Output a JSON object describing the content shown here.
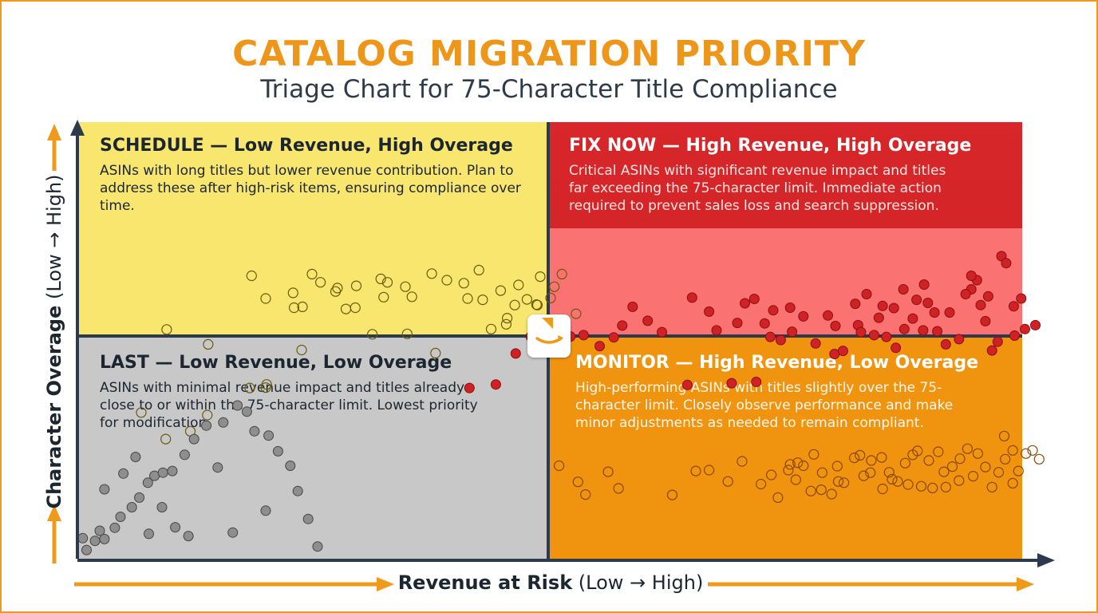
{
  "header": {
    "title": "CATALOG MIGRATION PRIORITY",
    "subtitle": "Triage Chart for 75-Character Title Compliance"
  },
  "colors": {
    "schedule": "#f8e66f",
    "fix_now": "#d42528",
    "fix_now_lower": "#fb7273",
    "last": "#c8c8c8",
    "monitor": "#f0940f",
    "axis": "#2c3a4c",
    "arrow": "#ef9a1a"
  },
  "chart_data": {
    "type": "scatter",
    "title": "CATALOG MIGRATION PRIORITY",
    "subtitle": "Triage Chart for 75-Character Title Compliance",
    "xlabel": "Revenue at Risk",
    "xlabel_range": "(Low → High)",
    "ylabel": "Character Overage",
    "ylabel_range": "(Low → High)",
    "xlim": [
      0,
      1
    ],
    "ylim": [
      0,
      1
    ],
    "grid": false,
    "quadrants": {
      "schedule": {
        "heading": "SCHEDULE — Low Revenue, High Overage",
        "description": "ASINs with long titles but lower revenue contribution. Plan to address these after high-risk items, ensuring compliance over time."
      },
      "fix_now": {
        "heading": "FIX NOW — High Revenue, High Overage",
        "description": "Critical ASINs with significant revenue impact and titles far exceeding the 75-character limit. Immediate action required to prevent sales loss and search suppression."
      },
      "last": {
        "heading": "LAST — Low Revenue, Low Overage",
        "description": "ASINs with minimal revenue impact and titles already close to or within the 75-character limit. Lowest priority for modification."
      },
      "monitor": {
        "heading": "MONITOR — High Revenue, Low Overage",
        "description": "High-performing ASINs with titles slightly over the 75-character limit. Closely observe performance and make minor adjustments as needed to remain compliant."
      }
    },
    "series": [
      {
        "quadrant": "schedule",
        "points": [
          [
            0.093,
            0.525
          ],
          [
            0.066,
            0.335
          ],
          [
            0.136,
            0.329
          ],
          [
            0.092,
            0.274
          ],
          [
            0.118,
            0.292
          ],
          [
            0.137,
            0.491
          ],
          [
            0.181,
            0.391
          ],
          [
            0.198,
            0.392
          ],
          [
            0.183,
            0.648
          ],
          [
            0.199,
            0.399
          ],
          [
            0.198,
            0.596
          ],
          [
            0.227,
            0.609
          ],
          [
            0.236,
            0.478
          ],
          [
            0.228,
            0.575
          ],
          [
            0.247,
            0.652
          ],
          [
            0.237,
            0.577
          ],
          [
            0.256,
            0.633
          ],
          [
            0.274,
            0.62
          ],
          [
            0.283,
            0.572
          ],
          [
            0.294,
            0.625
          ],
          [
            0.272,
            0.612
          ],
          [
            0.293,
            0.575
          ],
          [
            0.311,
            0.514
          ],
          [
            0.327,
            0.633
          ],
          [
            0.32,
            0.641
          ],
          [
            0.323,
            0.599
          ],
          [
            0.346,
            0.623
          ],
          [
            0.348,
            0.515
          ],
          [
            0.353,
            0.6
          ],
          [
            0.374,
            0.653
          ],
          [
            0.378,
            0.471
          ],
          [
            0.39,
            0.638
          ],
          [
            0.412,
            0.596
          ],
          [
            0.408,
            0.631
          ],
          [
            0.424,
            0.661
          ],
          [
            0.428,
            0.593
          ],
          [
            0.447,
            0.614
          ],
          [
            0.475,
            0.594
          ],
          [
            0.466,
            0.627
          ],
          [
            0.485,
            0.582
          ],
          [
            0.454,
            0.551
          ],
          [
            0.504,
            0.623
          ],
          [
            0.5,
            0.597
          ],
          [
            0.512,
            0.652
          ],
          [
            0.462,
            0.581
          ],
          [
            0.453,
            0.537
          ],
          [
            0.527,
            0.561
          ],
          [
            0.489,
            0.646
          ],
          [
            0.437,
            0.526
          ],
          [
            0.486,
            0.581
          ]
        ]
      },
      {
        "quadrant": "fix_now",
        "points": [
          [
            0.645,
            0.398
          ],
          [
            0.692,
            0.402
          ],
          [
            0.718,
            0.405
          ],
          [
            0.733,
            0.508
          ],
          [
            0.744,
            0.501
          ],
          [
            0.756,
            0.52
          ],
          [
            0.781,
            0.493
          ],
          [
            0.801,
            0.469
          ],
          [
            0.81,
            0.476
          ],
          [
            0.823,
            0.584
          ],
          [
            0.826,
            0.535
          ],
          [
            0.835,
            0.606
          ],
          [
            0.848,
            0.552
          ],
          [
            0.856,
            0.508
          ],
          [
            0.866,
            0.483
          ],
          [
            0.874,
            0.617
          ],
          [
            0.888,
            0.593
          ],
          [
            0.896,
            0.628
          ],
          [
            0.91,
            0.521
          ],
          [
            0.923,
            0.564
          ],
          [
            0.946,
            0.617
          ],
          [
            0.952,
            0.638
          ],
          [
            0.964,
            0.601
          ],
          [
            0.978,
            0.693
          ],
          [
            0.983,
            0.677
          ],
          [
            0.991,
            0.578
          ],
          [
            0.999,
            0.596
          ],
          [
            1.003,
            0.526
          ],
          [
            1.014,
            0.535
          ],
          [
            0.992,
            0.511
          ],
          [
            0.974,
            0.497
          ],
          [
            0.968,
            0.477
          ],
          [
            0.961,
            0.544
          ],
          [
            0.956,
            0.581
          ],
          [
            0.946,
            0.648
          ],
          [
            0.94,
            0.606
          ],
          [
            0.933,
            0.503
          ],
          [
            0.919,
            0.491
          ],
          [
            0.907,
            0.564
          ],
          [
            0.9,
            0.586
          ],
          [
            0.895,
            0.523
          ],
          [
            0.884,
            0.55
          ],
          [
            0.875,
            0.526
          ],
          [
            0.864,
            0.574
          ],
          [
            0.852,
            0.579
          ],
          [
            0.843,
            0.512
          ],
          [
            0.829,
            0.519
          ],
          [
            0.802,
            0.533
          ],
          [
            0.794,
            0.557
          ],
          [
            0.768,
            0.555
          ],
          [
            0.754,
            0.575
          ],
          [
            0.736,
            0.569
          ],
          [
            0.727,
            0.539
          ],
          [
            0.716,
            0.595
          ],
          [
            0.706,
            0.585
          ],
          [
            0.698,
            0.54
          ],
          [
            0.676,
            0.523
          ],
          [
            0.668,
            0.566
          ],
          [
            0.65,
            0.598
          ],
          [
            0.618,
            0.519
          ],
          [
            0.603,
            0.545
          ],
          [
            0.587,
            0.577
          ],
          [
            0.576,
            0.534
          ],
          [
            0.567,
            0.507
          ],
          [
            0.552,
            0.487
          ],
          [
            0.535,
            0.512
          ],
          [
            0.521,
            0.509
          ],
          [
            0.495,
            0.496
          ],
          [
            0.479,
            0.509
          ],
          [
            0.463,
            0.47
          ],
          [
            0.442,
            0.399
          ],
          [
            0.414,
            0.391
          ]
        ]
      },
      {
        "quadrant": "last",
        "points": [
          [
            0.008,
            0.02
          ],
          [
            0.017,
            0.041
          ],
          [
            0.022,
            0.064
          ],
          [
            0.027,
            0.045
          ],
          [
            0.038,
            0.071
          ],
          [
            0.044,
            0.096
          ],
          [
            0.056,
            0.118
          ],
          [
            0.064,
            0.14
          ],
          [
            0.073,
            0.174
          ],
          [
            0.08,
            0.19
          ],
          [
            0.089,
            0.197
          ],
          [
            0.099,
            0.201
          ],
          [
            0.112,
            0.238
          ],
          [
            0.122,
            0.274
          ],
          [
            0.135,
            0.305
          ],
          [
            0.153,
            0.312
          ],
          [
            0.168,
            0.351
          ],
          [
            0.178,
            0.337
          ],
          [
            0.186,
            0.292
          ],
          [
            0.201,
            0.282
          ],
          [
            0.211,
            0.246
          ],
          [
            0.224,
            0.213
          ],
          [
            0.232,
            0.155
          ],
          [
            0.243,
            0.091
          ],
          [
            0.253,
            0.028
          ],
          [
            0.004,
            0.047
          ],
          [
            0.027,
            0.159
          ],
          [
            0.047,
            0.195
          ],
          [
            0.06,
            0.233
          ],
          [
            0.074,
            0.057
          ],
          [
            0.088,
            0.118
          ],
          [
            0.102,
            0.072
          ],
          [
            0.116,
            0.052
          ],
          [
            0.147,
            0.209
          ],
          [
            0.163,
            0.06
          ],
          [
            0.198,
            0.11
          ]
        ]
      },
      {
        "quadrant": "monitor",
        "points": [
          [
            0.723,
            0.171
          ],
          [
            0.734,
            0.192
          ],
          [
            0.741,
            0.14
          ],
          [
            0.754,
            0.216
          ],
          [
            0.76,
            0.181
          ],
          [
            0.768,
            0.213
          ],
          [
            0.776,
            0.155
          ],
          [
            0.788,
            0.197
          ],
          [
            0.798,
            0.148
          ],
          [
            0.804,
            0.212
          ],
          [
            0.811,
            0.174
          ],
          [
            0.822,
            0.231
          ],
          [
            0.832,
            0.19
          ],
          [
            0.84,
            0.225
          ],
          [
            0.852,
            0.16
          ],
          [
            0.859,
            0.198
          ],
          [
            0.868,
            0.177
          ],
          [
            0.876,
            0.219
          ],
          [
            0.884,
            0.238
          ],
          [
            0.893,
            0.166
          ],
          [
            0.901,
            0.225
          ],
          [
            0.911,
            0.245
          ],
          [
            0.917,
            0.199
          ],
          [
            0.926,
            0.211
          ],
          [
            0.933,
            0.179
          ],
          [
            0.942,
            0.252
          ],
          [
            0.948,
            0.189
          ],
          [
            0.953,
            0.241
          ],
          [
            0.961,
            0.21
          ],
          [
            0.968,
            0.164
          ],
          [
            0.975,
            0.198
          ],
          [
            0.982,
            0.228
          ],
          [
            0.99,
            0.173
          ],
          [
            0.996,
            0.201
          ],
          [
            1.004,
            0.241
          ],
          [
            1.011,
            0.248
          ],
          [
            1.018,
            0.228
          ],
          [
            0.981,
            0.281
          ],
          [
            0.99,
            0.248
          ],
          [
            0.934,
            0.229
          ],
          [
            0.919,
            0.164
          ],
          [
            0.905,
            0.162
          ],
          [
            0.889,
            0.247
          ],
          [
            0.879,
            0.17
          ],
          [
            0.862,
            0.182
          ],
          [
            0.851,
            0.232
          ],
          [
            0.839,
            0.197
          ],
          [
            0.828,
            0.237
          ],
          [
            0.805,
            0.177
          ],
          [
            0.787,
            0.158
          ],
          [
            0.779,
            0.239
          ],
          [
            0.762,
            0.22
          ],
          [
            0.752,
            0.203
          ],
          [
            0.703,
            0.223
          ],
          [
            0.688,
            0.177
          ],
          [
            0.668,
            0.203
          ],
          [
            0.654,
            0.201
          ],
          [
            0.629,
            0.146
          ],
          [
            0.572,
            0.161
          ],
          [
            0.561,
            0.199
          ],
          [
            0.537,
            0.147
          ],
          [
            0.529,
            0.176
          ],
          [
            0.509,
            0.213
          ]
        ]
      }
    ]
  }
}
